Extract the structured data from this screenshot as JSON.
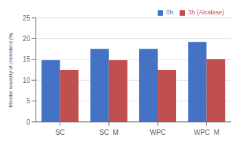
{
  "chart_data": {
    "type": "bar",
    "categories": [
      "SC",
      "SC  M",
      "WPC",
      "WPC  M"
    ],
    "series": [
      {
        "name": "0h",
        "color": "#4472C4",
        "values": [
          14.8,
          17.5,
          17.5,
          19.2
        ]
      },
      {
        "name": "3h (Alcalase)",
        "color": "#C0504D",
        "values": [
          12.5,
          14.8,
          12.5,
          15.1
        ]
      }
    ],
    "ylabel": "Micellar solubility of cholesterol (%)",
    "ylim": [
      0,
      25
    ],
    "yticks": [
      0,
      5,
      10,
      15,
      20,
      25
    ],
    "grid": true,
    "legend": "upper right"
  }
}
